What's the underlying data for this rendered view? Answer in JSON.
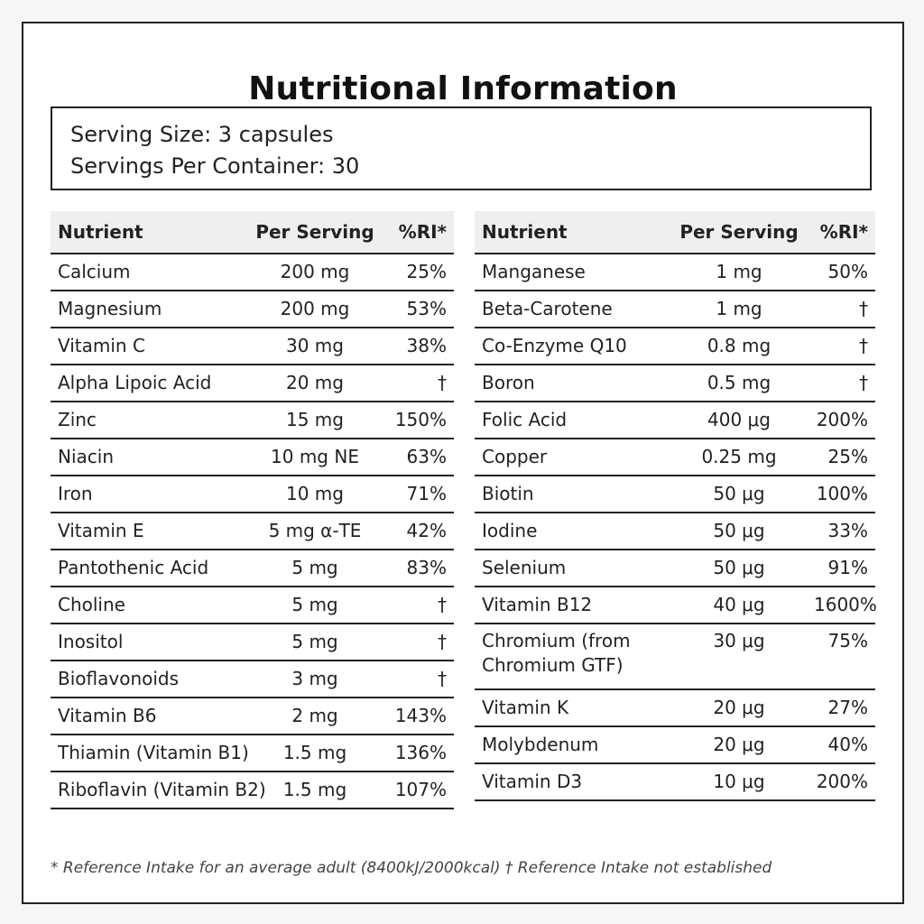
{
  "title": "Nutritional Information",
  "serving": {
    "size": "Serving Size: 3 capsules",
    "per_container": "Servings Per Container: 30"
  },
  "headers": {
    "nutrient": "Nutrient",
    "per_serving": "Per Serving",
    "ri": "%RI*"
  },
  "left_rows": [
    {
      "name": "Calcium",
      "amount": "200 mg",
      "ri": "25%"
    },
    {
      "name": "Magnesium",
      "amount": "200 mg",
      "ri": "53%"
    },
    {
      "name": "Vitamin C",
      "amount": "30 mg",
      "ri": "38%"
    },
    {
      "name": "Alpha Lipoic Acid",
      "amount": "20 mg",
      "ri": "†"
    },
    {
      "name": "Zinc",
      "amount": "15 mg",
      "ri": "150%"
    },
    {
      "name": "Niacin",
      "amount": "10 mg NE",
      "ri": "63%"
    },
    {
      "name": "Iron",
      "amount": "10 mg",
      "ri": "71%"
    },
    {
      "name": "Vitamin E",
      "amount": "5 mg α-TE",
      "ri": "42%"
    },
    {
      "name": "Pantothenic Acid",
      "amount": "5 mg",
      "ri": "83%"
    },
    {
      "name": "Choline",
      "amount": "5 mg",
      "ri": "†"
    },
    {
      "name": "Inositol",
      "amount": "5 mg",
      "ri": "†"
    },
    {
      "name": "Bioflavonoids",
      "amount": "3 mg",
      "ri": "†"
    },
    {
      "name": "Vitamin B6",
      "amount": "2 mg",
      "ri": "143%"
    },
    {
      "name": "Thiamin (Vitamin B1)",
      "amount": "1.5 mg",
      "ri": "136%"
    },
    {
      "name": "Riboflavin (Vitamin B2)",
      "amount": "1.5 mg",
      "ri": "107%"
    }
  ],
  "right_rows": [
    {
      "name": "Manganese",
      "amount": "1 mg",
      "ri": "50%"
    },
    {
      "name": "Beta-Carotene",
      "amount": "1 mg",
      "ri": "†"
    },
    {
      "name": "Co-Enzyme Q10",
      "amount": "0.8 mg",
      "ri": "†"
    },
    {
      "name": "Boron",
      "amount": "0.5 mg",
      "ri": "†"
    },
    {
      "name": "Folic Acid",
      "amount": "400 μg",
      "ri": "200%"
    },
    {
      "name": "Copper",
      "amount": "0.25 mg",
      "ri": "25%"
    },
    {
      "name": "Biotin",
      "amount": "50 μg",
      "ri": "100%"
    },
    {
      "name": "Iodine",
      "amount": "50 μg",
      "ri": "33%"
    },
    {
      "name": "Selenium",
      "amount": "50 μg",
      "ri": "91%"
    },
    {
      "name": "Vitamin B12",
      "amount": "40 μg",
      "ri": "1600%"
    },
    {
      "name": "Chromium (from Chromium GTF)",
      "amount": "30 μg",
      "ri": "75%"
    },
    {
      "name": "Vitamin K",
      "amount": "20 μg",
      "ri": "27%"
    },
    {
      "name": "Molybdenum",
      "amount": "20 μg",
      "ri": "40%"
    },
    {
      "name": "Vitamin D3",
      "amount": "10 μg",
      "ri": "200%"
    }
  ],
  "footnote": "* Reference Intake for an average adult (8400kJ/2000kcal) † Reference Intake not established"
}
